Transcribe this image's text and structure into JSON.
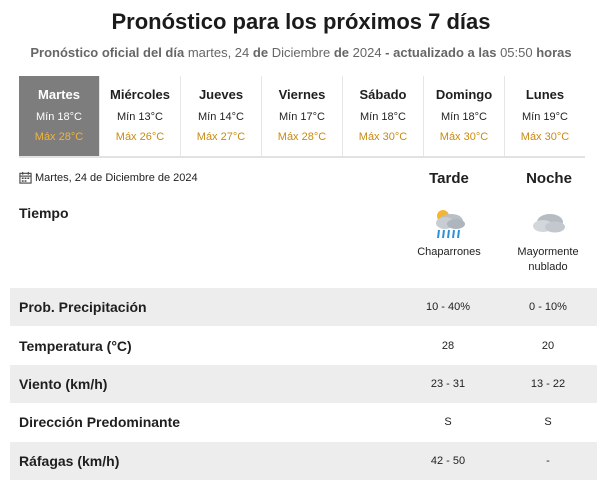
{
  "header": {
    "title": "Pronóstico para los próximos 7 días",
    "subtitle_prefix": "Pronóstico oficial del día",
    "subtitle_date_a": "martes, 24",
    "subtitle_de_1": "de",
    "subtitle_date_b": "Diciembre",
    "subtitle_de_2": "de",
    "subtitle_year": "2024",
    "subtitle_updated": "- actualizado a las",
    "subtitle_time": "05:50",
    "subtitle_suffix": "horas"
  },
  "days": [
    {
      "name": "Martes",
      "min": "Mín 18°C",
      "max": "Máx 28°C",
      "active": true
    },
    {
      "name": "Miércoles",
      "min": "Mín 13°C",
      "max": "Máx 26°C"
    },
    {
      "name": "Jueves",
      "min": "Mín 14°C",
      "max": "Máx 27°C"
    },
    {
      "name": "Viernes",
      "min": "Mín 17°C",
      "max": "Máx 28°C"
    },
    {
      "name": "Sábado",
      "min": "Mín 18°C",
      "max": "Máx 30°C"
    },
    {
      "name": "Domingo",
      "min": "Mín 18°C",
      "max": "Máx 30°C"
    },
    {
      "name": "Lunes",
      "min": "Mín 19°C",
      "max": "Máx 30°C"
    }
  ],
  "detail": {
    "date": "Martes, 24 de Diciembre de 2024",
    "columns": [
      "Tarde",
      "Noche"
    ],
    "tiempo_label": "Tiempo",
    "weather": [
      {
        "icon": "showers-icon",
        "text": "Chaparrones"
      },
      {
        "icon": "mostly-cloudy-icon",
        "text": "Mayormente nublado"
      }
    ],
    "rows": [
      {
        "label": "Prob. Precipitación",
        "tarde": "10 - 40%",
        "noche": "0 - 10%"
      },
      {
        "label": "Temperatura (°C)",
        "tarde": "28",
        "noche": "20"
      },
      {
        "label": "Viento (km/h)",
        "tarde": "23 - 31",
        "noche": "13 - 22"
      },
      {
        "label": "Dirección Predominante",
        "tarde": "S",
        "noche": "S"
      },
      {
        "label": "Ráfagas (km/h)",
        "tarde": "42 - 50",
        "noche": "-"
      }
    ]
  },
  "colors": {
    "active_day_bg": "#7d7d7d",
    "max_temp": "#c98a10",
    "row_shade": "#ededed"
  }
}
